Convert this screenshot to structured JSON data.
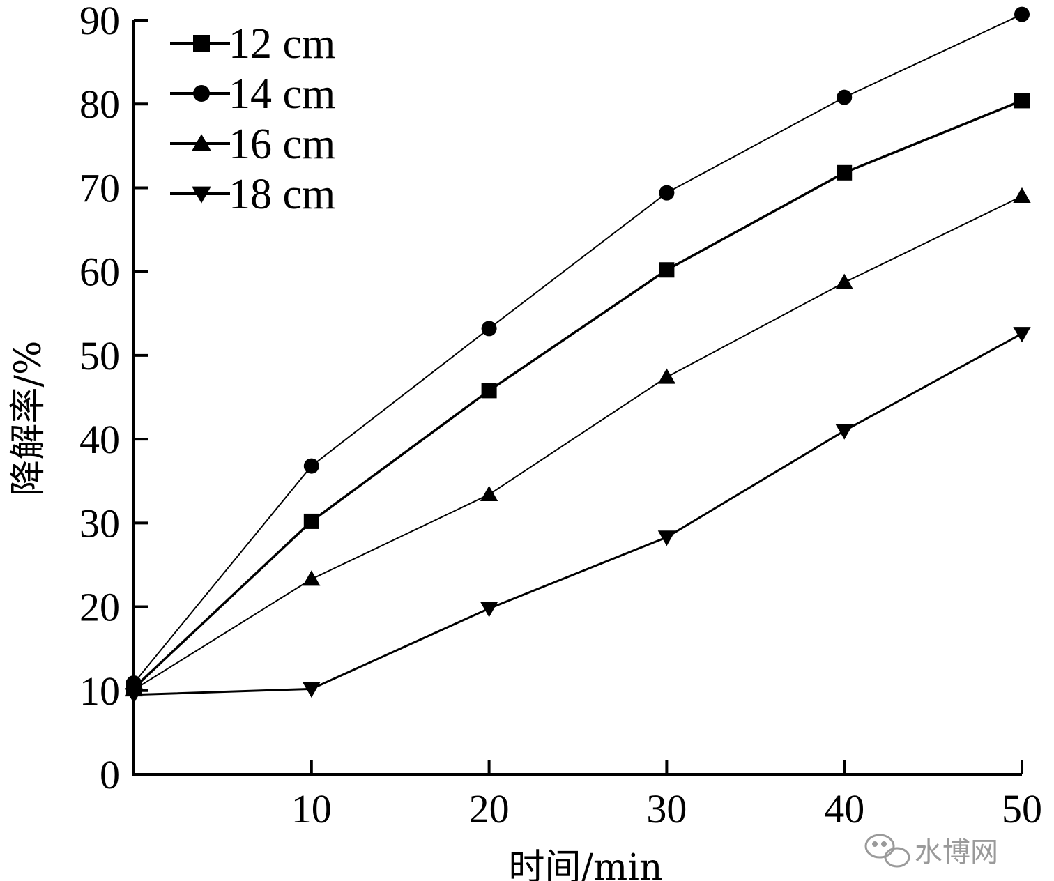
{
  "chart_data": {
    "type": "line",
    "title": "",
    "xlabel": "时间/min",
    "ylabel": "降解率/%",
    "x": [
      0,
      10,
      20,
      30,
      40,
      50
    ],
    "xticks": [
      10,
      20,
      30,
      40,
      50
    ],
    "yticks": [
      0,
      10,
      20,
      30,
      40,
      50,
      60,
      70,
      80,
      90
    ],
    "xlim": [
      0,
      50
    ],
    "ylim": [
      0,
      90
    ],
    "grid": false,
    "legend_position": "top-left",
    "series": [
      {
        "name": "12 cm",
        "marker": "square",
        "values": [
          10.3,
          30.2,
          45.8,
          60.2,
          71.8,
          80.4
        ]
      },
      {
        "name": "14 cm",
        "marker": "circle",
        "values": [
          10.9,
          36.8,
          53.2,
          69.4,
          80.8,
          90.7
        ]
      },
      {
        "name": "16 cm",
        "marker": "triangle-up",
        "values": [
          10.1,
          23.3,
          33.4,
          47.4,
          58.7,
          69.0
        ]
      },
      {
        "name": "18 cm",
        "marker": "triangle-down",
        "values": [
          9.5,
          10.2,
          19.8,
          28.3,
          41.0,
          52.6
        ]
      }
    ]
  },
  "watermark": {
    "text": "水博网",
    "icon": "wechat-icon"
  },
  "colors": {
    "line": "#000000",
    "background": "#ffffff",
    "watermark": "#9a9a9a"
  }
}
